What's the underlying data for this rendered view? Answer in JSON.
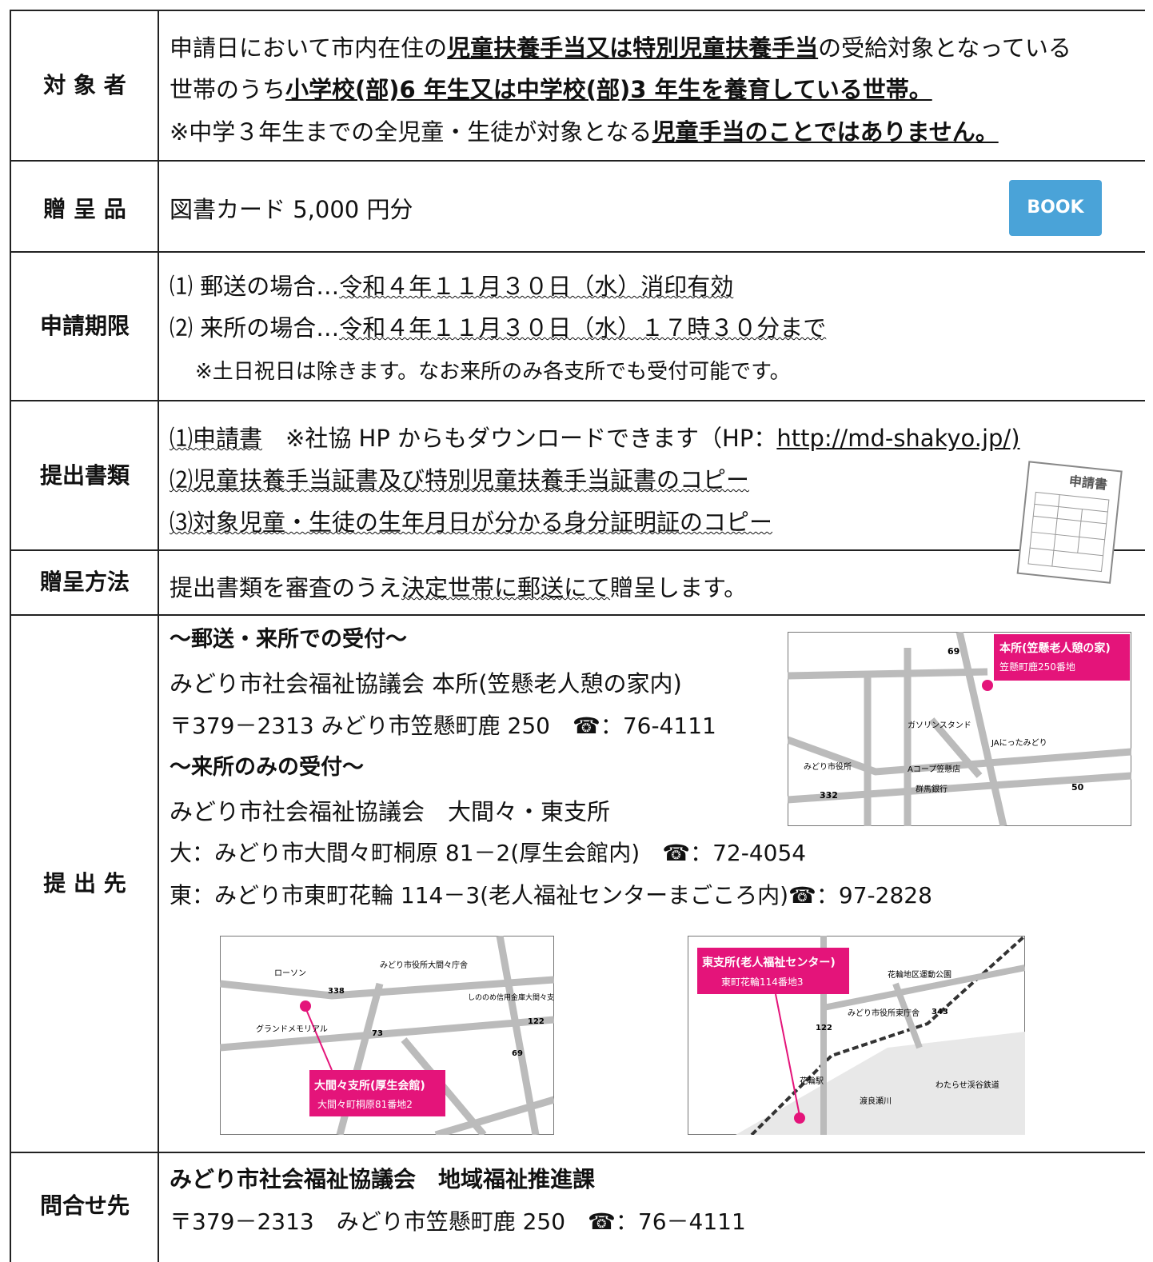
{
  "eligibility": {
    "label": "対 象 者",
    "line1": [
      "申請日において市内在住の",
      "児童扶養手当又は特別児童扶養手当",
      "の受給対象となっている"
    ],
    "line2": [
      "世帯のうち",
      "小学校(部)6 年生又は中学校(部)3 年生を養育している世帯。"
    ],
    "line3": [
      "※中学３年生までの全児童・生徒が対象となる",
      "児童手当のことではありません。"
    ]
  },
  "gift": {
    "label": "贈 呈 品",
    "text": "図書カード 5,000 円分",
    "icon": "BOOK"
  },
  "deadline": {
    "label": "申請期限",
    "items": [
      [
        "⑴ 郵送の場合…",
        "令和４年１１月３０日（水）消印有効"
      ],
      [
        "⑵ 来所の場合…",
        "令和４年１１月３０日（水）１７時３０分まで"
      ]
    ],
    "note": "※土日祝日は除きます。なお来所のみ各支所でも受付可能です。"
  },
  "documents": {
    "label": "提出書類",
    "items": [
      [
        "⑴申請書",
        "※社協 HP からもダウンロードできます（HP：",
        "http://md-shakyo.jp/)"
      ],
      [
        "⑵児童扶養手当証書及び特別児童扶養手当証書のコピー"
      ],
      [
        "⑶対象児童・生徒の生年月日が分かる身分証明証のコピー"
      ]
    ],
    "form_icon": "申請書"
  },
  "method": {
    "label": "贈呈方法",
    "segments": [
      "提出書類を審査のうえ",
      "決定世帯に郵送にて",
      "贈呈します。"
    ]
  },
  "destination": {
    "label": "提 出 先",
    "mail_heading": "～郵送・来所での受付～",
    "main_office": "みどり市社会福祉協議会 本所(笠懸老人憩の家内)",
    "main_address": "〒379－2313 みどり市笠懸町鹿 250",
    "main_phone": "☎：76-4111",
    "visit_heading": "～来所のみの受付～",
    "branch_office": "みどり市社会福祉協議会　大間々・東支所",
    "branch_omama": "大：みどり市大間々町桐原 81－2(厚生会館内)",
    "branch_omama_phone": "☎：72-4054",
    "branch_higashi": "東：みどり市東町花輪 114－3(老人福祉センターまごころ内)",
    "branch_higashi_phone": "☎：97-2828",
    "map_main": {
      "title": "本所(笠懸老人憩の家)",
      "address": "笠懸町鹿250番地",
      "labels": [
        "ガソリンスタンド",
        "JAにったみどり",
        "みどり市役所",
        "Aコープ笠懸店",
        "群馬銀行"
      ],
      "routes": [
        "69",
        "50",
        "332"
      ]
    },
    "map_omama": {
      "title": "大間々支所(厚生会館)",
      "address": "大間々町桐原81番地2",
      "labels": [
        "ローソン",
        "みどり市役所大間々庁舎",
        "しののめ信用金庫大間々支店",
        "グランドメモリアル"
      ],
      "routes": [
        "338",
        "73",
        "122",
        "69"
      ]
    },
    "map_higashi": {
      "title": "東支所(老人福祉センター)",
      "address": "東町花輪114番地3",
      "labels": [
        "花輪地区運動公園",
        "みどり市役所東庁舎",
        "わたらせ渓谷鉄道",
        "渡良瀬川",
        "花輪駅"
      ],
      "routes": [
        "122",
        "343"
      ]
    }
  },
  "inquiry": {
    "label": "問合せ先",
    "office": "みどり市社会福祉協議会　地域福祉推進課",
    "address": "〒379－2313　みどり市笠懸町鹿 250　☎：76－4111"
  }
}
